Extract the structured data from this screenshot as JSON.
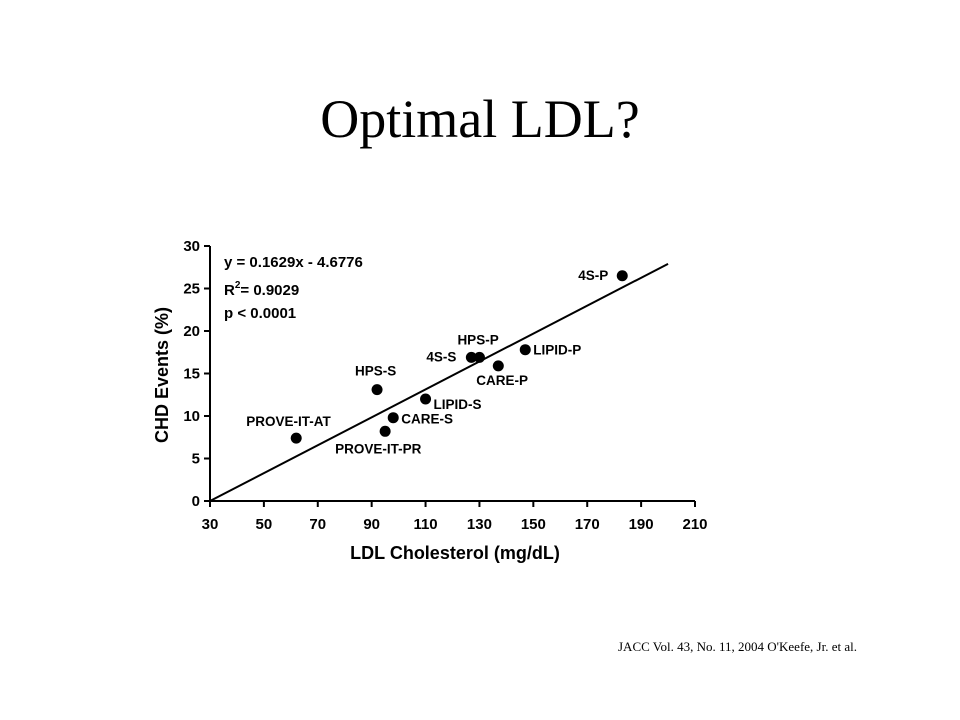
{
  "slide": {
    "title": "Optimal LDL?",
    "citation": "JACC Vol. 43, No. 11, 2004 O'Keefe, Jr. et al."
  },
  "chart_data": {
    "type": "scatter",
    "xlabel": "LDL Cholesterol (mg/dL)",
    "ylabel": "CHD Events (%)",
    "xlim": [
      30,
      210
    ],
    "ylim": [
      0,
      30
    ],
    "x_ticks": [
      30,
      50,
      70,
      90,
      110,
      130,
      150,
      170,
      190,
      210
    ],
    "y_ticks": [
      0,
      5,
      10,
      15,
      20,
      25,
      30
    ],
    "grid": false,
    "points": [
      {
        "label": "PROVE-IT-AT",
        "x": 62,
        "y": 7.4
      },
      {
        "label": "PROVE-IT-PR",
        "x": 95,
        "y": 8.2
      },
      {
        "label": "HPS-S",
        "x": 92,
        "y": 13.1
      },
      {
        "label": "CARE-S",
        "x": 98,
        "y": 9.8
      },
      {
        "label": "LIPID-S",
        "x": 110,
        "y": 12.0
      },
      {
        "label": "4S-S",
        "x": 127,
        "y": 16.9
      },
      {
        "label": "HPS-P",
        "x": 130,
        "y": 16.9
      },
      {
        "label": "CARE-P",
        "x": 137,
        "y": 15.9
      },
      {
        "label": "LIPID-P",
        "x": 147,
        "y": 17.8
      },
      {
        "label": "4S-P",
        "x": 183,
        "y": 26.5
      }
    ],
    "trendline": {
      "slope": 0.1629,
      "intercept": -4.6776,
      "x_range": [
        30,
        200
      ]
    },
    "annotations": [
      "y = 0.1629x - 4.6776",
      "R",
      "2",
      "= 0.9029",
      "p < 0.0001"
    ]
  }
}
